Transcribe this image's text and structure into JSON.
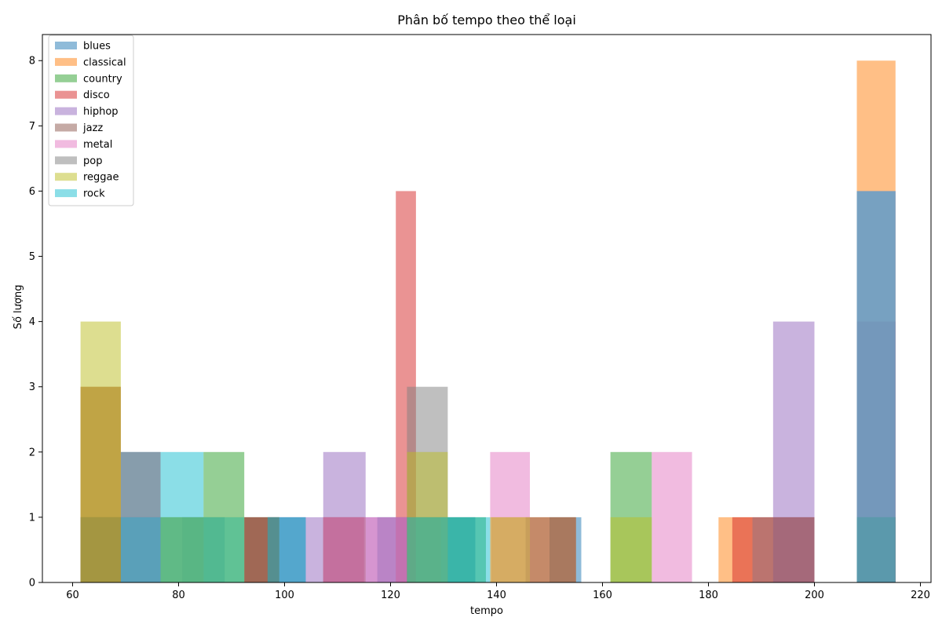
{
  "chart_data": {
    "type": "bar",
    "title": "Phân bố tempo theo thể loại",
    "xlabel": "tempo",
    "ylabel": "Số lượng",
    "xlim": [
      54.3,
      222.0
    ],
    "ylim": [
      0,
      8.4
    ],
    "xticks": [
      60,
      80,
      100,
      120,
      140,
      160,
      180,
      200,
      220
    ],
    "yticks": [
      0,
      1,
      2,
      3,
      4,
      5,
      6,
      7,
      8
    ],
    "grid": false,
    "legend_position": "top-left",
    "bar_opacity": 0.5,
    "series": [
      {
        "name": "blues",
        "color": "#1f77b4",
        "bins": [
          [
            61.5,
            69.1,
            1
          ],
          [
            69.1,
            76.6,
            2
          ],
          [
            80.7,
            88.7,
            1
          ],
          [
            96.8,
            104.0,
            1
          ],
          [
            117.5,
            123.1,
            1
          ],
          [
            123.1,
            129.5,
            1
          ],
          [
            129.5,
            136.0,
            1
          ],
          [
            150.0,
            156.0,
            1
          ],
          [
            208.0,
            215.3,
            1
          ]
        ]
      },
      {
        "name": "classical",
        "color": "#ff7f0e",
        "bins": [
          [
            61.5,
            69.1,
            3
          ],
          [
            76.6,
            84.7,
            1
          ],
          [
            123.1,
            129.5,
            1
          ],
          [
            139.0,
            145.5,
            1
          ],
          [
            145.5,
            155.0,
            1
          ],
          [
            181.9,
            188.3,
            1
          ],
          [
            208.0,
            215.3,
            8
          ]
        ]
      },
      {
        "name": "country",
        "color": "#2ca02c",
        "bins": [
          [
            61.5,
            69.1,
            1
          ],
          [
            76.6,
            84.7,
            1
          ],
          [
            84.7,
            92.4,
            2
          ],
          [
            92.4,
            99.0,
            1
          ],
          [
            123.1,
            138.0,
            1
          ],
          [
            161.5,
            169.3,
            2
          ],
          [
            208.0,
            215.3,
            1
          ]
        ]
      },
      {
        "name": "disco",
        "color": "#d62728",
        "bins": [
          [
            61.5,
            69.1,
            1
          ],
          [
            92.4,
            99.0,
            1
          ],
          [
            107.3,
            115.0,
            1
          ],
          [
            121.0,
            124.8,
            6
          ],
          [
            184.5,
            200.0,
            1
          ],
          [
            208.0,
            215.3,
            4
          ]
        ]
      },
      {
        "name": "hiphop",
        "color": "#9467bd",
        "bins": [
          [
            69.1,
            76.6,
            1
          ],
          [
            99.0,
            107.3,
            1
          ],
          [
            107.3,
            115.3,
            2
          ],
          [
            115.3,
            123.1,
            1
          ],
          [
            192.2,
            200.0,
            4
          ],
          [
            208.0,
            215.3,
            6
          ]
        ]
      },
      {
        "name": "jazz",
        "color": "#8c564b",
        "bins": [
          [
            61.5,
            69.1,
            3
          ],
          [
            92.4,
            99.0,
            1
          ],
          [
            107.3,
            115.3,
            1
          ],
          [
            145.5,
            155.0,
            1
          ],
          [
            188.3,
            200.0,
            1
          ],
          [
            208.0,
            215.3,
            1
          ]
        ]
      },
      {
        "name": "metal",
        "color": "#e377c2",
        "bins": [
          [
            69.1,
            76.6,
            1
          ],
          [
            107.3,
            115.3,
            1
          ],
          [
            115.3,
            123.1,
            1
          ],
          [
            138.8,
            146.3,
            2
          ],
          [
            169.3,
            176.9,
            2
          ],
          [
            208.0,
            215.3,
            6
          ]
        ]
      },
      {
        "name": "pop",
        "color": "#7f7f7f",
        "bins": [
          [
            61.5,
            69.1,
            1
          ],
          [
            69.1,
            76.6,
            2
          ],
          [
            123.1,
            130.8,
            3
          ],
          [
            208.0,
            215.3,
            1
          ]
        ]
      },
      {
        "name": "reggae",
        "color": "#bcbd22",
        "bins": [
          [
            61.5,
            69.1,
            4
          ],
          [
            76.6,
            84.7,
            1
          ],
          [
            84.7,
            92.4,
            1
          ],
          [
            123.1,
            130.8,
            2
          ],
          [
            138.8,
            146.3,
            1
          ],
          [
            161.5,
            169.3,
            1
          ]
        ]
      },
      {
        "name": "rock",
        "color": "#17becf",
        "bins": [
          [
            69.1,
            76.6,
            1
          ],
          [
            76.6,
            84.7,
            2
          ],
          [
            84.7,
            92.4,
            1
          ],
          [
            96.8,
            104.0,
            1
          ],
          [
            123.1,
            130.8,
            1
          ],
          [
            130.8,
            138.8,
            1
          ],
          [
            208.0,
            215.3,
            6
          ]
        ]
      }
    ]
  }
}
